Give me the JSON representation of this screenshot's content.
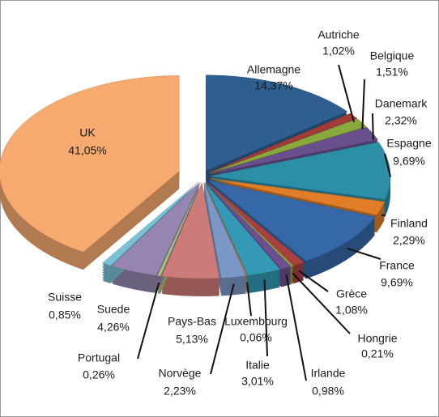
{
  "chart_data": {
    "type": "pie",
    "categories": [
      "Allemagne",
      "Autriche",
      "Belgique",
      "Danemark",
      "Espagne",
      "Finland",
      "France",
      "Grèce",
      "Hongrie",
      "Irlande",
      "Italie",
      "Luxembourg",
      "Norvège",
      "Pays-Bas",
      "Portugal",
      "Suede",
      "Suisse",
      "UK"
    ],
    "values": [
      14.37,
      1.02,
      1.51,
      2.32,
      9.69,
      2.29,
      9.69,
      1.08,
      0.21,
      0.98,
      3.01,
      0.06,
      2.23,
      5.13,
      0.26,
      4.26,
      0.85,
      41.05
    ],
    "value_labels": [
      "14,37%",
      "1,02%",
      "1,51%",
      "2,32%",
      "9,69%",
      "2,29%",
      "9,69%",
      "1,08%",
      "0,21%",
      "0,98%",
      "3,01%",
      "0,06%",
      "2,23%",
      "5,13%",
      "0,26%",
      "4,26%",
      "0,85%",
      "41,05%"
    ],
    "colors": [
      "#2f5e91",
      "#a33b39",
      "#8aa83e",
      "#6a4f8e",
      "#2d8ea8",
      "#e07e27",
      "#3668a7",
      "#a8413e",
      "#8ca744",
      "#6c4f8f",
      "#3399b5",
      "#d67c2c",
      "#7b97c7",
      "#cd7b78",
      "#aac17b",
      "#9685b1",
      "#79c1d5",
      "#f6aa70"
    ]
  }
}
